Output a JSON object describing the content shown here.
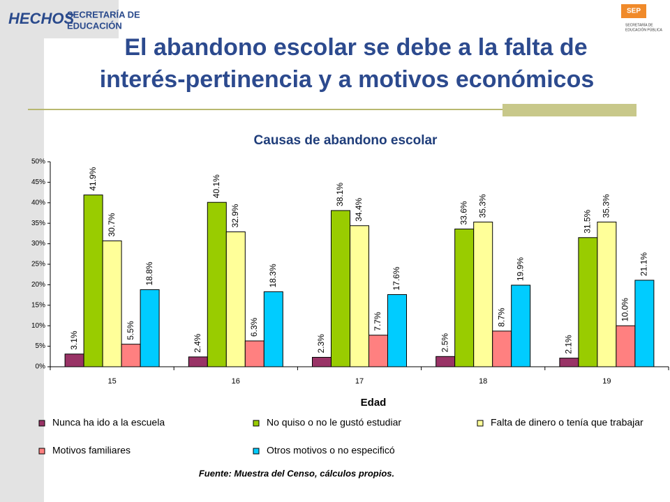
{
  "logos": {
    "left": [
      "HECHOS",
      "SECRETARÍA DE",
      "EDUCACIÓN"
    ],
    "right": [
      "SEP",
      "SECRETARÍA DE",
      "EDUCACIÓN PÚBLICA"
    ]
  },
  "slide_title": [
    "El abandono escolar se debe a la falta de",
    "interés-pertinencia y a motivos económicos"
  ],
  "source": "Fuente: Muestra del Censo, cálculos propios.",
  "chart_data": {
    "type": "bar",
    "title": "Causas de abandono escolar",
    "x_label": "Edad",
    "categories": [
      "15",
      "16",
      "17",
      "18",
      "19"
    ],
    "ylim": [
      0,
      50
    ],
    "yticks": [
      {
        "value": 0,
        "label": "0%"
      },
      {
        "value": 5,
        "label": "5%"
      },
      {
        "value": 10,
        "label": "10%"
      },
      {
        "value": 15,
        "label": "15%"
      },
      {
        "value": 20,
        "label": "20%"
      },
      {
        "value": 25,
        "label": "25%"
      },
      {
        "value": 30,
        "label": "30%"
      },
      {
        "value": 35,
        "label": "35%"
      },
      {
        "value": 40,
        "label": "40%"
      },
      {
        "value": 45,
        "label": "45%"
      },
      {
        "value": 50,
        "label": "50%"
      }
    ],
    "legend": "bottom",
    "series": [
      {
        "name": "Nunca ha ido a la escuela",
        "color": "#993366",
        "values": [
          3.1,
          2.4,
          2.3,
          2.5,
          2.1
        ],
        "value_labels": [
          "3.1%",
          "2.4%",
          "2.3%",
          "2.5%",
          "2.1%"
        ]
      },
      {
        "name": "No quiso o no le gustó estudiar",
        "color": "#99cc00",
        "values": [
          41.9,
          40.1,
          38.1,
          33.6,
          31.5
        ],
        "value_labels": [
          "41.9%",
          "40.1%",
          "38.1%",
          "33.6%",
          "31.5%"
        ]
      },
      {
        "name": "Falta de dinero o tenía que trabajar",
        "color": "#ffff99",
        "values": [
          30.7,
          32.9,
          34.4,
          35.3,
          35.3
        ],
        "value_labels": [
          "30.7%",
          "32.9%",
          "34.4%",
          "35.3%",
          "35.3%"
        ]
      },
      {
        "name": "Motivos familiares",
        "color": "#ff8080",
        "values": [
          5.5,
          6.3,
          7.7,
          8.7,
          10.0
        ],
        "value_labels": [
          "5.5%",
          "6.3%",
          "7.7%",
          "8.7%",
          "10.0%"
        ]
      },
      {
        "name": "Otros motivos o no especificó",
        "color": "#00ccff",
        "values": [
          18.8,
          18.3,
          17.6,
          19.9,
          21.1
        ],
        "value_labels": [
          "18.8%",
          "18.3%",
          "17.6%",
          "19.9%",
          "21.1%"
        ]
      }
    ]
  }
}
